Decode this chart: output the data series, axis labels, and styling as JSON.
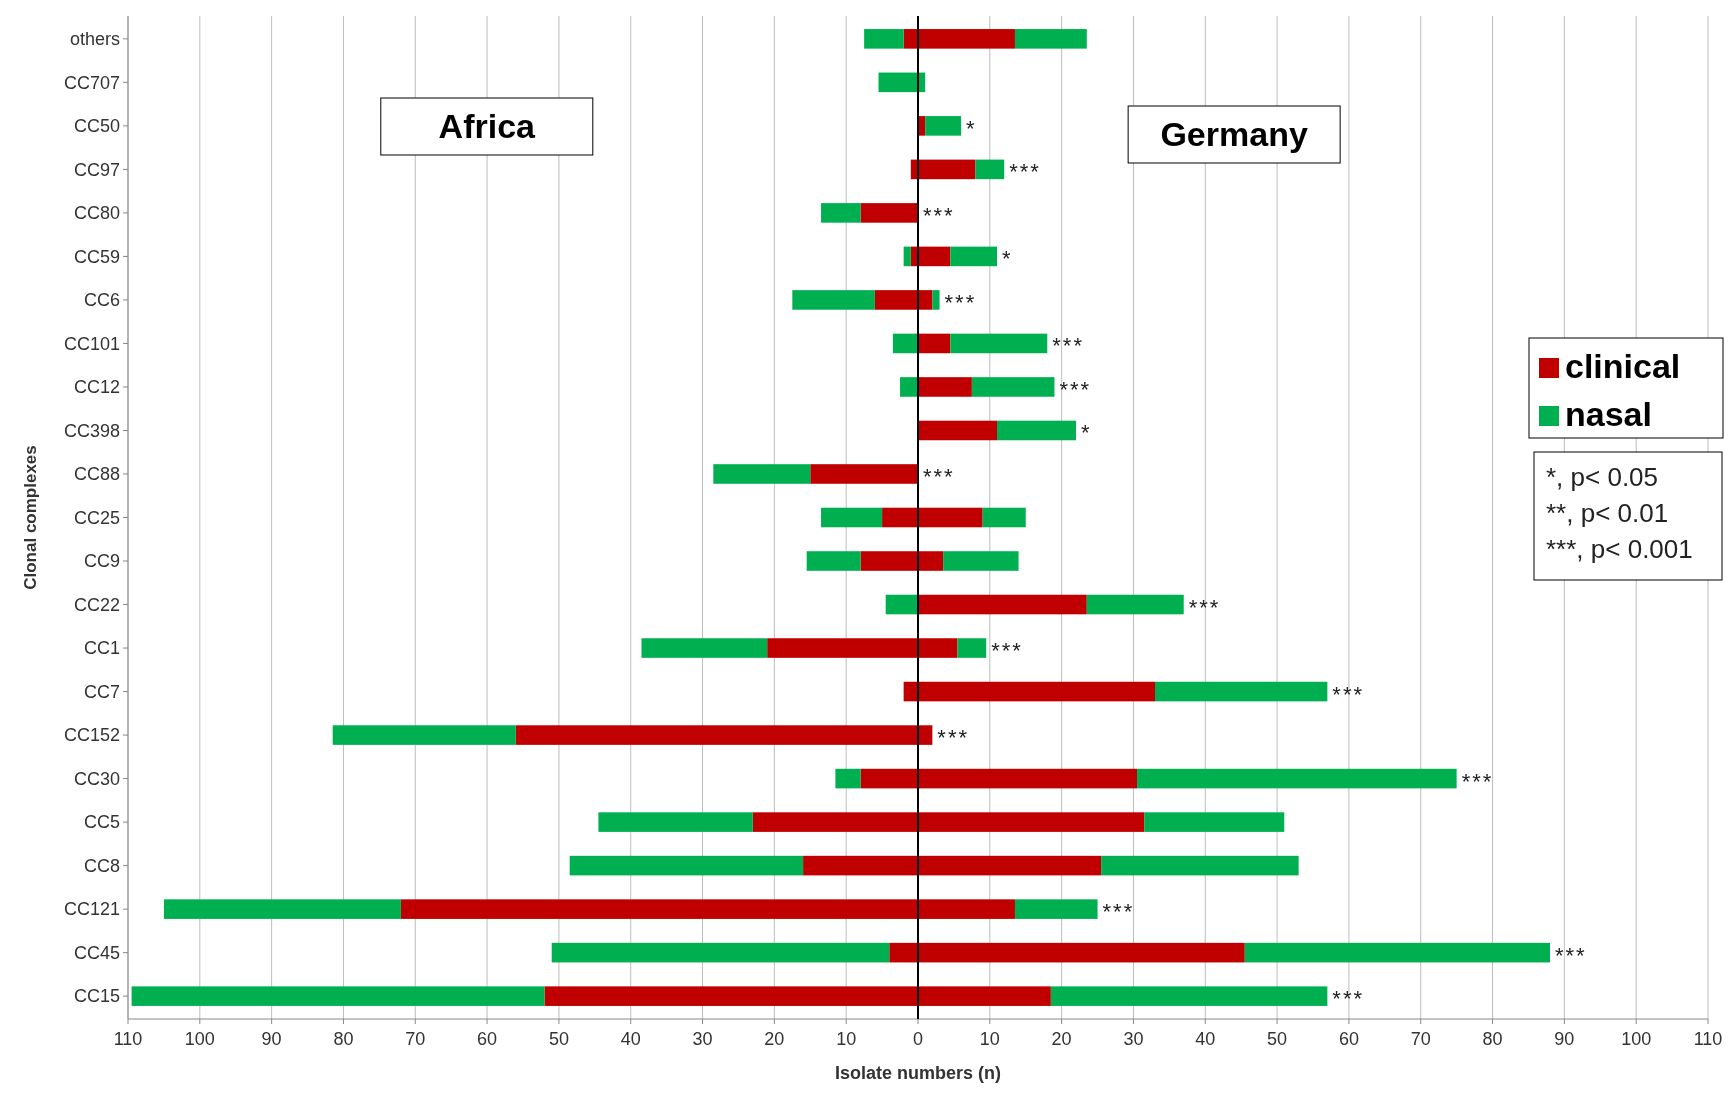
{
  "chart_data": {
    "type": "bar",
    "orientation": "horizontal",
    "stacked": true,
    "xlabel": "Isolate numbers (n)",
    "ylabel": "Clonal complexes",
    "categories": [
      "others",
      "CC707",
      "CC50",
      "CC97",
      "CC80",
      "CC59",
      "CC6",
      "CC101",
      "CC12",
      "CC398",
      "CC88",
      "CC25",
      "CC9",
      "CC22",
      "CC1",
      "CC7",
      "CC152",
      "CC30",
      "CC5",
      "CC8",
      "CC121",
      "CC45",
      "CC15"
    ],
    "series": [
      {
        "name": "clinical",
        "color": "#c00000",
        "values": [
          -2,
          null,
          null,
          -1,
          -8,
          -1,
          -6,
          null,
          null,
          null,
          -15,
          -5,
          -8,
          null,
          -21,
          -2,
          -56,
          -8,
          -23,
          -16,
          -72,
          -4,
          -52
        ]
      },
      {
        "name": "nasal",
        "color": "#00b050",
        "values": [
          -5.5,
          -5.5,
          null,
          null,
          -5.5,
          -1,
          -11.5,
          -3.5,
          -2.5,
          null,
          -13.5,
          -8.5,
          -7.5,
          -4.5,
          -17.5,
          null,
          -25.5,
          -3.5,
          -21.5,
          -32.5,
          -33,
          -47,
          -57.5
        ]
      },
      {
        "color": "#c00000",
        "values": [
          13.5,
          null,
          1,
          8,
          null,
          4.5,
          2,
          4.5,
          7.5,
          11,
          null,
          9,
          3.5,
          23.5,
          5.5,
          33,
          2,
          30.5,
          31.5,
          25.5,
          13.5,
          45.5,
          18.5
        ]
      },
      {
        "color": "#00b050",
        "values": [
          10,
          1,
          5,
          4,
          null,
          6.5,
          1,
          13.5,
          11.5,
          11,
          null,
          6,
          10.5,
          13.5,
          4,
          24,
          null,
          44.5,
          19.5,
          27.5,
          11.5,
          42.5,
          38.5
        ]
      }
    ],
    "xlim": [
      -110,
      110
    ],
    "xticks": [
      {
        "value": -110,
        "label": "110"
      },
      {
        "value": -100,
        "label": "100"
      },
      {
        "value": -90,
        "label": "90"
      },
      {
        "value": -80,
        "label": "80"
      },
      {
        "value": -70,
        "label": "70"
      },
      {
        "value": -60,
        "label": "60"
      },
      {
        "value": -50,
        "label": "50"
      },
      {
        "value": -40,
        "label": "40"
      },
      {
        "value": -30,
        "label": "30"
      },
      {
        "value": -20,
        "label": "20"
      },
      {
        "value": -10,
        "label": "10"
      },
      0,
      10,
      20,
      30,
      40,
      50,
      60,
      70,
      80,
      90,
      100,
      110
    ],
    "grid": "x",
    "legend": "right",
    "annotations": [
      "Africa",
      "Germany",
      "*, p< 0.05",
      "**, p< 0.01",
      "***, p< 0.001",
      {
        "text": "*",
        "x": 6,
        "y": "CC50"
      },
      {
        "text": "***",
        "x": 12,
        "y": "CC97"
      },
      {
        "text": "***",
        "x": 0,
        "y": "CC80"
      },
      {
        "text": "*",
        "x": 11,
        "y": "CC59"
      },
      {
        "text": "***",
        "x": 3,
        "y": "CC6"
      },
      {
        "text": "***",
        "x": 18,
        "y": "CC101"
      },
      {
        "text": "***",
        "x": 19,
        "y": "CC12"
      },
      {
        "text": "*",
        "x": 22,
        "y": "CC398"
      },
      {
        "text": "***",
        "x": 0,
        "y": "CC88"
      },
      {
        "text": "***",
        "x": 37,
        "y": "CC22"
      },
      {
        "text": "***",
        "x": 9.5,
        "y": "CC1"
      },
      {
        "text": "***",
        "x": 57,
        "y": "CC7"
      },
      {
        "text": "***",
        "x": 2,
        "y": "CC152"
      },
      {
        "text": "***",
        "x": 75,
        "y": "CC30"
      },
      {
        "text": "***",
        "x": 25,
        "y": "CC121"
      },
      {
        "text": "***",
        "x": 88,
        "y": "CC45"
      },
      {
        "text": "***",
        "x": 57,
        "y": "CC15"
      }
    ]
  }
}
